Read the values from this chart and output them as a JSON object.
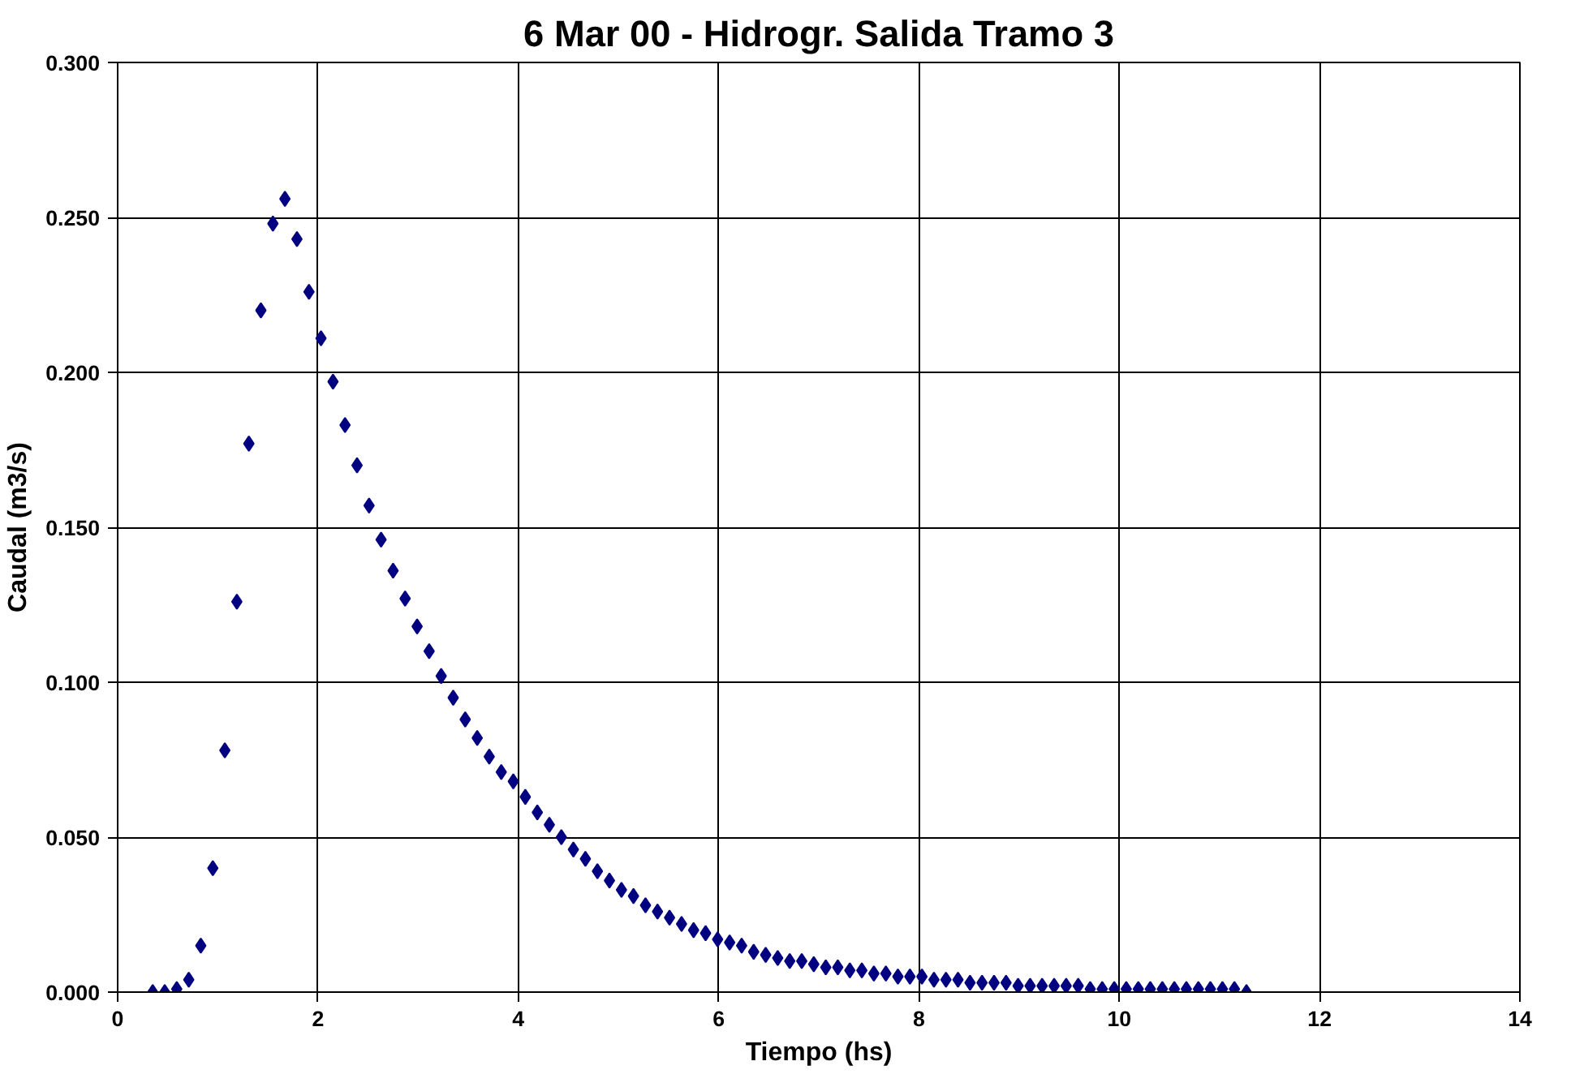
{
  "chart_data": {
    "type": "scatter",
    "title": "6 Mar 00 - Hidrogr. Salida Tramo 3",
    "xlabel": "Tiempo (hs)",
    "ylabel": "Caudal (m3/s)",
    "x": [
      0.35,
      0.47,
      0.59,
      0.71,
      0.83,
      0.95,
      1.07,
      1.19,
      1.31,
      1.43,
      1.55,
      1.67,
      1.79,
      1.91,
      2.03,
      2.15,
      2.27,
      2.39,
      2.51,
      2.63,
      2.75,
      2.87,
      2.99,
      3.11,
      3.23,
      3.35,
      3.47,
      3.59,
      3.71,
      3.83,
      3.95,
      4.07,
      4.19,
      4.31,
      4.43,
      4.55,
      4.67,
      4.79,
      4.91,
      5.03,
      5.15,
      5.27,
      5.39,
      5.51,
      5.63,
      5.75,
      5.87,
      5.99,
      6.11,
      6.23,
      6.35,
      6.47,
      6.59,
      6.71,
      6.83,
      6.95,
      7.07,
      7.19,
      7.31,
      7.43,
      7.55,
      7.67,
      7.79,
      7.91,
      8.03,
      8.15,
      8.27,
      8.39,
      8.51,
      8.63,
      8.75,
      8.87,
      8.99,
      9.11,
      9.23,
      9.35,
      9.47,
      9.59,
      9.71,
      9.83,
      9.95,
      10.07,
      10.19,
      10.31,
      10.43,
      10.55,
      10.67,
      10.79,
      10.91,
      11.03,
      11.15,
      11.27
    ],
    "series": [
      {
        "color": "#000080",
        "values": [
          0.0,
          0.0,
          0.001,
          0.004,
          0.015,
          0.04,
          0.078,
          0.126,
          0.177,
          0.22,
          0.248,
          0.256,
          0.243,
          0.226,
          0.211,
          0.197,
          0.183,
          0.17,
          0.157,
          0.146,
          0.136,
          0.127,
          0.118,
          0.11,
          0.102,
          0.095,
          0.088,
          0.082,
          0.076,
          0.071,
          0.068,
          0.063,
          0.058,
          0.054,
          0.05,
          0.046,
          0.043,
          0.039,
          0.036,
          0.033,
          0.031,
          0.028,
          0.026,
          0.024,
          0.022,
          0.02,
          0.019,
          0.017,
          0.016,
          0.015,
          0.013,
          0.012,
          0.011,
          0.01,
          0.01,
          0.009,
          0.008,
          0.008,
          0.007,
          0.007,
          0.006,
          0.006,
          0.005,
          0.005,
          0.005,
          0.004,
          0.004,
          0.004,
          0.003,
          0.003,
          0.003,
          0.003,
          0.002,
          0.002,
          0.002,
          0.002,
          0.002,
          0.002,
          0.001,
          0.001,
          0.001,
          0.001,
          0.001,
          0.001,
          0.001,
          0.001,
          0.001,
          0.001,
          0.001,
          0.001,
          0.001,
          0.0
        ]
      }
    ],
    "xlim": [
      0,
      14
    ],
    "xticks": [
      0,
      2,
      4,
      6,
      8,
      10,
      12,
      14
    ],
    "ylim": [
      0,
      0.3
    ],
    "yticks": [
      {
        "value": 0,
        "label": "0.000"
      },
      {
        "value": 0.05,
        "label": "0.050"
      },
      {
        "value": 0.1,
        "label": "0.100"
      },
      {
        "value": 0.15,
        "label": "0.150"
      },
      {
        "value": 0.2,
        "label": "0.200"
      },
      {
        "value": 0.25,
        "label": "0.250"
      },
      {
        "value": 0.3,
        "label": "0.300"
      }
    ],
    "grid": true,
    "marker": "diamond"
  }
}
